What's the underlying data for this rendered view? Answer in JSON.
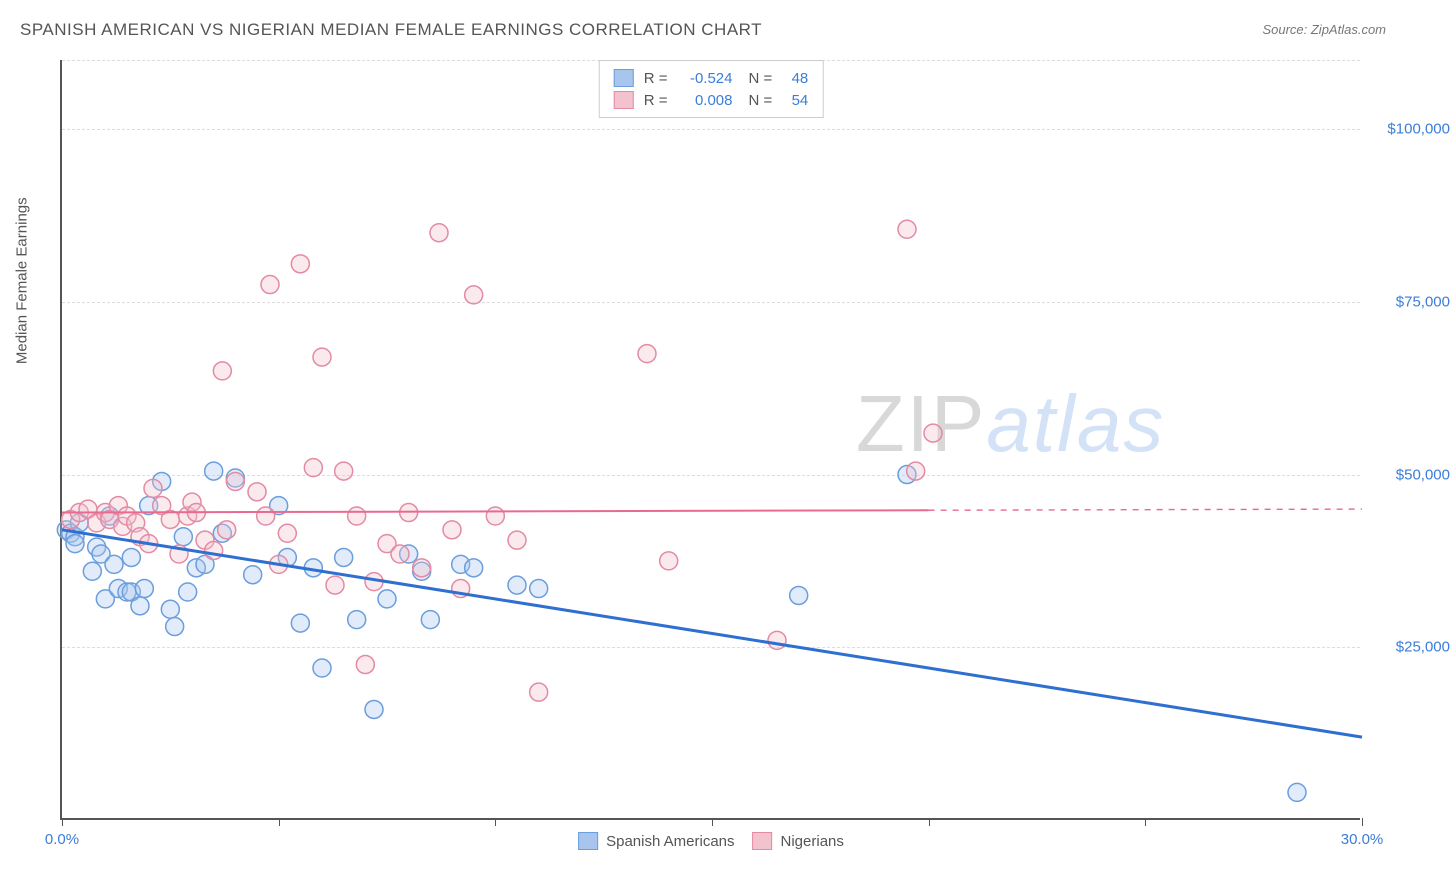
{
  "title": "SPANISH AMERICAN VS NIGERIAN MEDIAN FEMALE EARNINGS CORRELATION CHART",
  "source": "Source: ZipAtlas.com",
  "watermark_a": "ZIP",
  "watermark_b": "atlas",
  "chart": {
    "type": "scatter",
    "ylabel": "Median Female Earnings",
    "xlim": [
      0,
      30
    ],
    "ylim": [
      0,
      110000
    ],
    "x_ticks": [
      0,
      5,
      10,
      15,
      20,
      25,
      30
    ],
    "x_tick_labels": {
      "0": "0.0%",
      "30": "30.0%"
    },
    "y_gridlines": [
      25000,
      50000,
      75000,
      100000
    ],
    "y_tick_labels": {
      "25000": "$25,000",
      "50000": "$50,000",
      "75000": "$75,000",
      "100000": "$100,000"
    },
    "marker_radius": 9,
    "marker_stroke_width": 1.5,
    "marker_fill_opacity": 0.35,
    "grid_color": "#dddddd",
    "axis_color": "#555555",
    "label_color": "#3b7dd8",
    "background_color": "#ffffff",
    "series": [
      {
        "name": "Spanish Americans",
        "color_fill": "#a8c6ed",
        "color_stroke": "#6a9edc",
        "regression": {
          "x1": 0,
          "y1": 42000,
          "x2": 30,
          "y2": 12000,
          "solid_until_x": 30,
          "stroke": "#2e6fd0",
          "width": 3
        },
        "R": "-0.524",
        "N": "48",
        "points": [
          [
            0.1,
            42000
          ],
          [
            0.2,
            41500
          ],
          [
            0.3,
            41000
          ],
          [
            0.3,
            40000
          ],
          [
            0.4,
            43000
          ],
          [
            0.7,
            36000
          ],
          [
            0.8,
            39500
          ],
          [
            0.9,
            38500
          ],
          [
            1.0,
            32000
          ],
          [
            1.1,
            44000
          ],
          [
            1.2,
            37000
          ],
          [
            1.3,
            33500
          ],
          [
            1.5,
            33000
          ],
          [
            1.6,
            38000
          ],
          [
            1.6,
            33000
          ],
          [
            1.8,
            31000
          ],
          [
            1.9,
            33500
          ],
          [
            2.0,
            45500
          ],
          [
            2.3,
            49000
          ],
          [
            2.5,
            30500
          ],
          [
            2.6,
            28000
          ],
          [
            2.8,
            41000
          ],
          [
            2.9,
            33000
          ],
          [
            3.1,
            36500
          ],
          [
            3.3,
            37000
          ],
          [
            3.5,
            50500
          ],
          [
            3.7,
            41500
          ],
          [
            4.0,
            49500
          ],
          [
            4.4,
            35500
          ],
          [
            5.0,
            45500
          ],
          [
            5.2,
            38000
          ],
          [
            5.5,
            28500
          ],
          [
            5.8,
            36500
          ],
          [
            6.0,
            22000
          ],
          [
            6.5,
            38000
          ],
          [
            6.8,
            29000
          ],
          [
            7.2,
            16000
          ],
          [
            7.5,
            32000
          ],
          [
            8.0,
            38500
          ],
          [
            8.3,
            36000
          ],
          [
            8.5,
            29000
          ],
          [
            9.2,
            37000
          ],
          [
            9.5,
            36500
          ],
          [
            10.5,
            34000
          ],
          [
            11.0,
            33500
          ],
          [
            17.0,
            32500
          ],
          [
            19.5,
            50000
          ],
          [
            28.5,
            4000
          ]
        ]
      },
      {
        "name": "Nigerians",
        "color_fill": "#f2c2ce",
        "color_stroke": "#e48aa3",
        "regression": {
          "x1": 0,
          "y1": 44500,
          "x2": 30,
          "y2": 45000,
          "solid_until_x": 20,
          "stroke": "#e86b8f",
          "width": 2
        },
        "R": "0.008",
        "N": "54",
        "points": [
          [
            0.2,
            43500
          ],
          [
            0.4,
            44500
          ],
          [
            0.6,
            45000
          ],
          [
            0.8,
            43000
          ],
          [
            1.0,
            44500
          ],
          [
            1.1,
            43500
          ],
          [
            1.3,
            45500
          ],
          [
            1.4,
            42500
          ],
          [
            1.5,
            44000
          ],
          [
            1.7,
            43000
          ],
          [
            1.8,
            41000
          ],
          [
            2.0,
            40000
          ],
          [
            2.1,
            48000
          ],
          [
            2.3,
            45500
          ],
          [
            2.5,
            43500
          ],
          [
            2.7,
            38500
          ],
          [
            2.9,
            44000
          ],
          [
            3.0,
            46000
          ],
          [
            3.1,
            44500
          ],
          [
            3.3,
            40500
          ],
          [
            3.5,
            39000
          ],
          [
            3.7,
            65000
          ],
          [
            3.8,
            42000
          ],
          [
            4.0,
            49000
          ],
          [
            4.5,
            47500
          ],
          [
            4.7,
            44000
          ],
          [
            4.8,
            77500
          ],
          [
            5.0,
            37000
          ],
          [
            5.2,
            41500
          ],
          [
            5.5,
            80500
          ],
          [
            5.8,
            51000
          ],
          [
            6.0,
            67000
          ],
          [
            6.3,
            34000
          ],
          [
            6.5,
            50500
          ],
          [
            6.8,
            44000
          ],
          [
            7.0,
            22500
          ],
          [
            7.2,
            34500
          ],
          [
            7.5,
            40000
          ],
          [
            7.8,
            38500
          ],
          [
            8.0,
            44500
          ],
          [
            8.3,
            36500
          ],
          [
            8.7,
            85000
          ],
          [
            9.0,
            42000
          ],
          [
            9.2,
            33500
          ],
          [
            9.5,
            76000
          ],
          [
            10.0,
            44000
          ],
          [
            10.5,
            40500
          ],
          [
            11.0,
            18500
          ],
          [
            13.5,
            67500
          ],
          [
            14.0,
            37500
          ],
          [
            16.5,
            26000
          ],
          [
            19.5,
            85500
          ],
          [
            19.7,
            50500
          ],
          [
            20.1,
            56000
          ]
        ]
      }
    ],
    "r_legend_label_R": "R =",
    "r_legend_label_N": "N ="
  },
  "bottom_legend": {
    "items": [
      {
        "label": "Spanish Americans",
        "fill": "#a8c6ed",
        "stroke": "#6a9edc"
      },
      {
        "label": "Nigerians",
        "fill": "#f2c2ce",
        "stroke": "#e48aa3"
      }
    ]
  }
}
